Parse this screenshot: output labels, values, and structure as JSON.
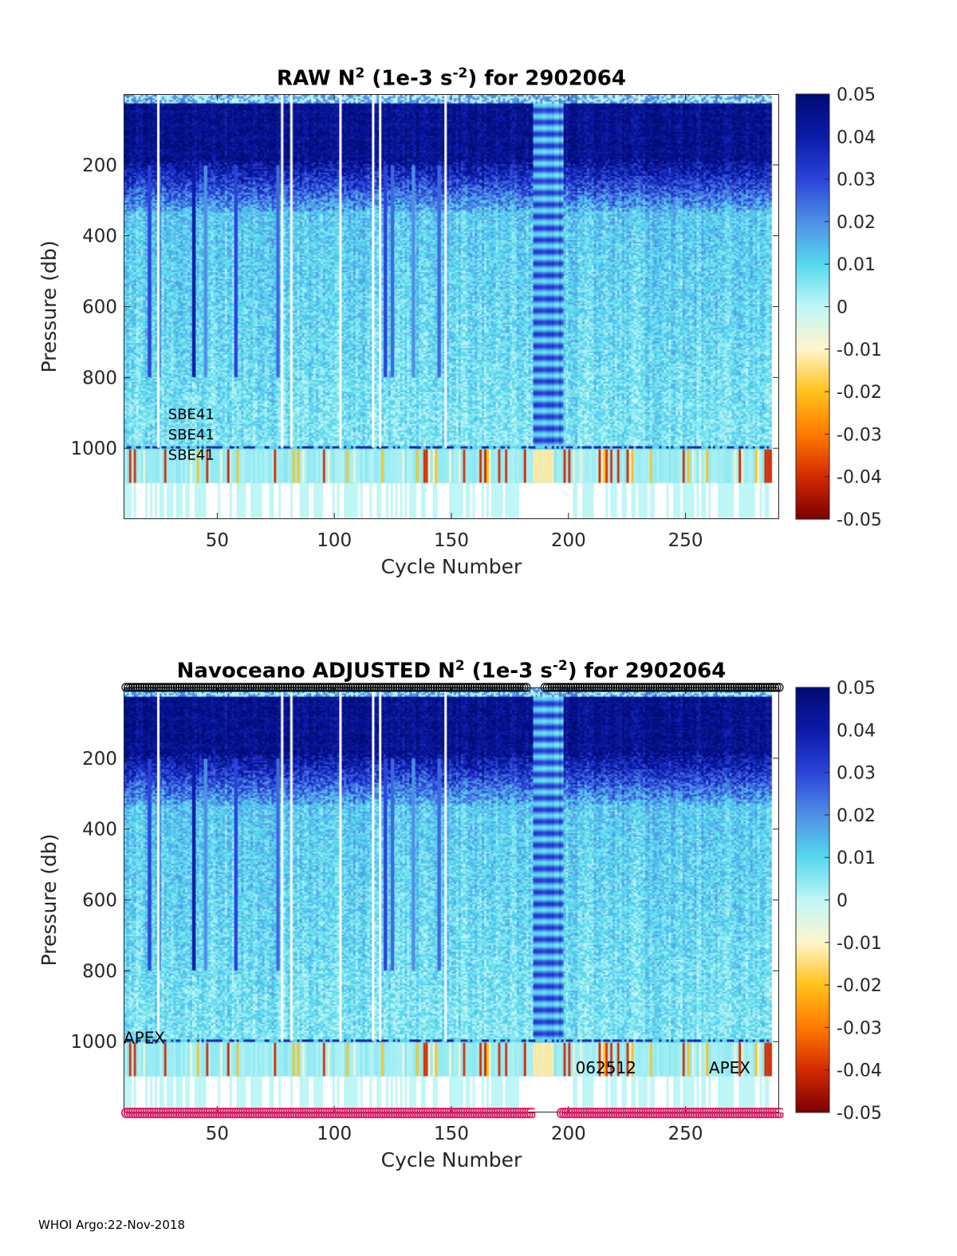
{
  "footer": "WHOI Argo:22-Nov-2018",
  "colorbar": {
    "ticks": [
      0.05,
      0.04,
      0.03,
      0.02,
      0.01,
      0,
      -0.01,
      -0.02,
      -0.03,
      -0.04,
      -0.05
    ],
    "tick_labels": [
      "0.05",
      "0.04",
      "0.03",
      "0.02",
      "0.01",
      "0",
      "-0.01",
      "-0.02",
      "-0.03",
      "-0.04",
      "-0.05"
    ],
    "colors": [
      "#7a0000",
      "#d42a00",
      "#ff7a00",
      "#ffc21a",
      "#fff5cc",
      "#bff6f6",
      "#55d9ee",
      "#4f8fe6",
      "#2a44d8",
      "#0b1aa8",
      "#000b73"
    ]
  },
  "chart_data": [
    {
      "type": "heatmap",
      "title_prefix": "RAW N",
      "title_sup1": "2",
      "title_mid": " (1e-3 s",
      "title_sup2": "-2",
      "title_suffix": ") for 2902064",
      "xlabel": "Cycle Number",
      "ylabel": "Pressure (db)",
      "xlim": [
        10,
        290
      ],
      "ylim": [
        1200,
        0
      ],
      "xticks": [
        50,
        100,
        150,
        200,
        250
      ],
      "xtick_labels": [
        "50",
        "100",
        "150",
        "200",
        "250"
      ],
      "yticks": [
        200,
        400,
        600,
        800,
        1000
      ],
      "ytick_labels": [
        "200",
        "400",
        "600",
        "800",
        "1000"
      ],
      "clim": [
        -0.05,
        0.05
      ],
      "annotations": [
        {
          "text": "SBE41",
          "x": 29,
          "y": 918
        },
        {
          "text": "SBE41",
          "x": 29,
          "y": 975
        },
        {
          "text": "SBE41",
          "x": 29,
          "y": 1032
        }
      ]
    },
    {
      "type": "heatmap",
      "title_prefix": "Navoceano  ADJUSTED N",
      "title_sup1": "2",
      "title_mid": " (1e-3 s",
      "title_sup2": "-2",
      "title_suffix": ") for 2902064",
      "xlabel": "Cycle Number",
      "ylabel": "Pressure (db)",
      "xlim": [
        10,
        290
      ],
      "ylim": [
        1200,
        0
      ],
      "xticks": [
        50,
        100,
        150,
        200,
        250
      ],
      "xtick_labels": [
        "50",
        "100",
        "150",
        "200",
        "250"
      ],
      "yticks": [
        200,
        400,
        600,
        800,
        1000
      ],
      "ytick_labels": [
        "200",
        "400",
        "600",
        "800",
        "1000"
      ],
      "clim": [
        -0.05,
        0.05
      ],
      "annotations": [
        {
          "text": "APEX",
          "x": 10,
          "y": 1005
        },
        {
          "text": "062512",
          "x": 203,
          "y": 1090
        },
        {
          "text": "APEX",
          "x": 260,
          "y": 1090
        }
      ],
      "top_markers": {
        "symbol": "circle",
        "color": "#000000",
        "x_from": 11,
        "x_to": 290
      },
      "bottom_markers": {
        "symbol": "G",
        "color": "#e0206a",
        "x_from": 11,
        "x_to": 290
      }
    }
  ]
}
